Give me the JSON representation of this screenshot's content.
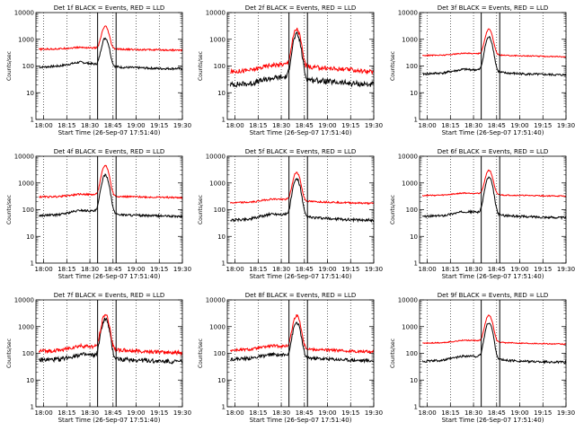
{
  "chart_data": [
    {
      "type": "line",
      "title": "Det 1f BLACK = Events, RED = LLD",
      "xlabel": "Start Time (26-Sep-07 17:51:40)",
      "ylabel": "Counts/sec",
      "yscale": "log",
      "ylim": [
        1,
        10000
      ],
      "grid": "dotted-vertical",
      "xticks": [
        "18:00",
        "18:15",
        "18:30",
        "18:45",
        "19:00",
        "19:15",
        "19:30"
      ],
      "yticks": [
        "1",
        "10",
        "100",
        "1000",
        "10000"
      ],
      "markers": [
        "18:35",
        "18:47"
      ],
      "series": [
        {
          "color": "#000000",
          "base": [
            90,
            100,
            140,
            110,
            90,
            85,
            80,
            80
          ],
          "peak": 1100,
          "noise": 0.04
        },
        {
          "color": "#ff0000",
          "base": [
            420,
            440,
            500,
            460,
            420,
            410,
            400,
            390
          ],
          "peak": 3000,
          "noise": 0.03
        }
      ]
    },
    {
      "type": "line",
      "title": "Det 2f BLACK = Events, RED = LLD",
      "xlabel": "Start Time (26-Sep-07 17:51:40)",
      "ylabel": "Counts/sec",
      "yscale": "log",
      "ylim": [
        1,
        10000
      ],
      "grid": "dotted-vertical",
      "xticks": [
        "18:00",
        "18:15",
        "18:30",
        "18:45",
        "19:00",
        "19:15",
        "19:30"
      ],
      "yticks": [
        "1",
        "10",
        "100",
        "1000",
        "10000"
      ],
      "markers": [
        "18:35",
        "18:47"
      ],
      "series": [
        {
          "color": "#000000",
          "base": [
            20,
            22,
            35,
            40,
            30,
            25,
            22,
            20
          ],
          "peak": 1500,
          "noise": 0.1
        },
        {
          "color": "#ff0000",
          "base": [
            60,
            70,
            110,
            120,
            90,
            80,
            70,
            60
          ],
          "peak": 2400,
          "noise": 0.08
        }
      ]
    },
    {
      "type": "line",
      "title": "Det 3f BLACK = Events, RED = LLD",
      "xlabel": "Start Time (26-Sep-07 17:51:40)",
      "ylabel": "Counts/sec",
      "yscale": "log",
      "ylim": [
        1,
        10000
      ],
      "grid": "dotted-vertical",
      "xticks": [
        "18:00",
        "18:15",
        "18:30",
        "18:45",
        "19:00",
        "19:15",
        "19:30"
      ],
      "yticks": [
        "1",
        "10",
        "100",
        "1000",
        "10000"
      ],
      "markers": [
        "18:35",
        "18:47"
      ],
      "series": [
        {
          "color": "#000000",
          "base": [
            50,
            55,
            75,
            70,
            55,
            50,
            48,
            46
          ],
          "peak": 1200,
          "noise": 0.04
        },
        {
          "color": "#ff0000",
          "base": [
            250,
            255,
            300,
            290,
            250,
            240,
            230,
            220
          ],
          "peak": 2400,
          "noise": 0.02
        }
      ]
    },
    {
      "type": "line",
      "title": "Det 4f BLACK = Events, RED = LLD",
      "xlabel": "Start Time (26-Sep-07 17:51:40)",
      "ylabel": "Counts/sec",
      "yscale": "log",
      "ylim": [
        1,
        10000
      ],
      "grid": "dotted-vertical",
      "xticks": [
        "18:00",
        "18:15",
        "18:30",
        "18:45",
        "19:00",
        "19:15",
        "19:30"
      ],
      "yticks": [
        "1",
        "10",
        "100",
        "1000",
        "10000"
      ],
      "markers": [
        "18:35",
        "18:47"
      ],
      "series": [
        {
          "color": "#000000",
          "base": [
            60,
            65,
            95,
            85,
            65,
            60,
            58,
            55
          ],
          "peak": 2000,
          "noise": 0.04
        },
        {
          "color": "#ff0000",
          "base": [
            300,
            310,
            380,
            360,
            310,
            300,
            290,
            280
          ],
          "peak": 4500,
          "noise": 0.03
        }
      ]
    },
    {
      "type": "line",
      "title": "Det 5f BLACK = Events, RED = LLD",
      "xlabel": "Start Time (26-Sep-07 17:51:40)",
      "ylabel": "Counts/sec",
      "yscale": "log",
      "ylim": [
        1,
        10000
      ],
      "grid": "dotted-vertical",
      "xticks": [
        "18:00",
        "18:15",
        "18:30",
        "18:45",
        "19:00",
        "19:15",
        "19:30"
      ],
      "yticks": [
        "1",
        "10",
        "100",
        "1000",
        "10000"
      ],
      "markers": [
        "18:35",
        "18:47"
      ],
      "series": [
        {
          "color": "#000000",
          "base": [
            40,
            45,
            70,
            65,
            50,
            45,
            42,
            40
          ],
          "peak": 1400,
          "noise": 0.05
        },
        {
          "color": "#ff0000",
          "base": [
            180,
            190,
            250,
            240,
            200,
            190,
            180,
            170
          ],
          "peak": 2500,
          "noise": 0.03
        }
      ]
    },
    {
      "type": "line",
      "title": "Det 6f BLACK = Events, RED = LLD",
      "xlabel": "Start Time (26-Sep-07 17:51:40)",
      "ylabel": "Counts/sec",
      "yscale": "log",
      "ylim": [
        1,
        10000
      ],
      "grid": "dotted-vertical",
      "xticks": [
        "18:00",
        "18:15",
        "18:30",
        "18:45",
        "19:00",
        "19:15",
        "19:30"
      ],
      "yticks": [
        "1",
        "10",
        "100",
        "1000",
        "10000"
      ],
      "markers": [
        "18:35",
        "18:47"
      ],
      "series": [
        {
          "color": "#000000",
          "base": [
            55,
            60,
            85,
            80,
            60,
            55,
            52,
            50
          ],
          "peak": 1600,
          "noise": 0.04
        },
        {
          "color": "#ff0000",
          "base": [
            340,
            350,
            420,
            400,
            350,
            340,
            330,
            320
          ],
          "peak": 3000,
          "noise": 0.02
        }
      ]
    },
    {
      "type": "line",
      "title": "Det 7f BLACK = Events, RED = LLD",
      "xlabel": "Start Time (26-Sep-07 17:51:40)",
      "ylabel": "Counts/sec",
      "yscale": "log",
      "ylim": [
        1,
        10000
      ],
      "grid": "dotted-vertical",
      "xticks": [
        "18:00",
        "18:15",
        "18:30",
        "18:45",
        "19:00",
        "19:15",
        "19:30"
      ],
      "yticks": [
        "1",
        "10",
        "100",
        "1000",
        "10000"
      ],
      "markers": [
        "18:35",
        "18:47"
      ],
      "series": [
        {
          "color": "#000000",
          "base": [
            55,
            60,
            90,
            80,
            60,
            55,
            50,
            48
          ],
          "peak": 1900,
          "noise": 0.08
        },
        {
          "color": "#ff0000",
          "base": [
            120,
            130,
            190,
            170,
            130,
            120,
            110,
            105
          ],
          "peak": 2800,
          "noise": 0.07
        }
      ]
    },
    {
      "type": "line",
      "title": "Det 8f BLACK = Events, RED = LLD",
      "xlabel": "Start Time (26-Sep-07 17:51:40)",
      "ylabel": "Counts/sec",
      "yscale": "log",
      "ylim": [
        1,
        10000
      ],
      "grid": "dotted-vertical",
      "xticks": [
        "18:00",
        "18:15",
        "18:30",
        "18:45",
        "19:00",
        "19:15",
        "19:30"
      ],
      "yticks": [
        "1",
        "10",
        "100",
        "1000",
        "10000"
      ],
      "markers": [
        "18:35",
        "18:47"
      ],
      "series": [
        {
          "color": "#000000",
          "base": [
            60,
            65,
            90,
            85,
            65,
            60,
            55,
            52
          ],
          "peak": 1400,
          "noise": 0.06
        },
        {
          "color": "#ff0000",
          "base": [
            130,
            140,
            190,
            180,
            140,
            130,
            120,
            115
          ],
          "peak": 2600,
          "noise": 0.05
        }
      ]
    },
    {
      "type": "line",
      "title": "Det 9f BLACK = Events, RED = LLD",
      "xlabel": "Start Time (26-Sep-07 17:51:40)",
      "ylabel": "Counts/sec",
      "yscale": "log",
      "ylim": [
        1,
        10000
      ],
      "grid": "dotted-vertical",
      "xticks": [
        "18:00",
        "18:15",
        "18:30",
        "18:45",
        "19:00",
        "19:15",
        "19:30"
      ],
      "yticks": [
        "1",
        "10",
        "100",
        "1000",
        "10000"
      ],
      "markers": [
        "18:35",
        "18:47"
      ],
      "series": [
        {
          "color": "#000000",
          "base": [
            50,
            55,
            80,
            75,
            55,
            50,
            48,
            46
          ],
          "peak": 1400,
          "noise": 0.04
        },
        {
          "color": "#ff0000",
          "base": [
            240,
            250,
            310,
            290,
            250,
            240,
            230,
            220
          ],
          "peak": 2700,
          "noise": 0.02
        }
      ]
    }
  ]
}
